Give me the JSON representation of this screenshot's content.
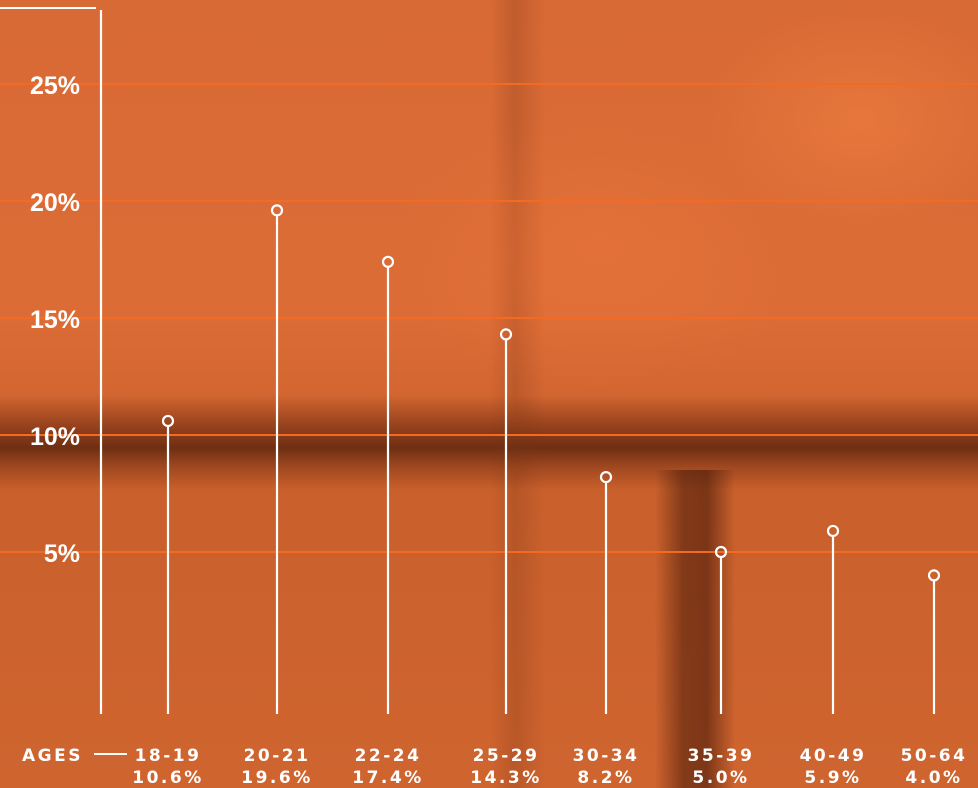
{
  "chart_data": {
    "type": "lollipop",
    "title": "",
    "xlabel": "AGES",
    "ylabel": "",
    "categories": [
      "18-19",
      "20-21",
      "22-24",
      "25-29",
      "30-34",
      "35-39",
      "40-49",
      "50-64"
    ],
    "value_labels": [
      "10.6%",
      "19.6%",
      "17.4%",
      "14.3%",
      "8.2%",
      "5.0%",
      "5.9%",
      "4.0%"
    ],
    "values": [
      10.6,
      19.6,
      17.4,
      14.3,
      8.2,
      5.0,
      5.9,
      4.0
    ],
    "y_ticks": [
      5,
      10,
      15,
      20,
      25
    ],
    "y_tick_labels": [
      "5%",
      "10%",
      "15%",
      "20%",
      "25%"
    ],
    "ylim": [
      0,
      26.5
    ],
    "grid": true,
    "colors": {
      "gridline": "#f36a22",
      "stem": "#ffffff",
      "text": "#ffffff"
    }
  }
}
